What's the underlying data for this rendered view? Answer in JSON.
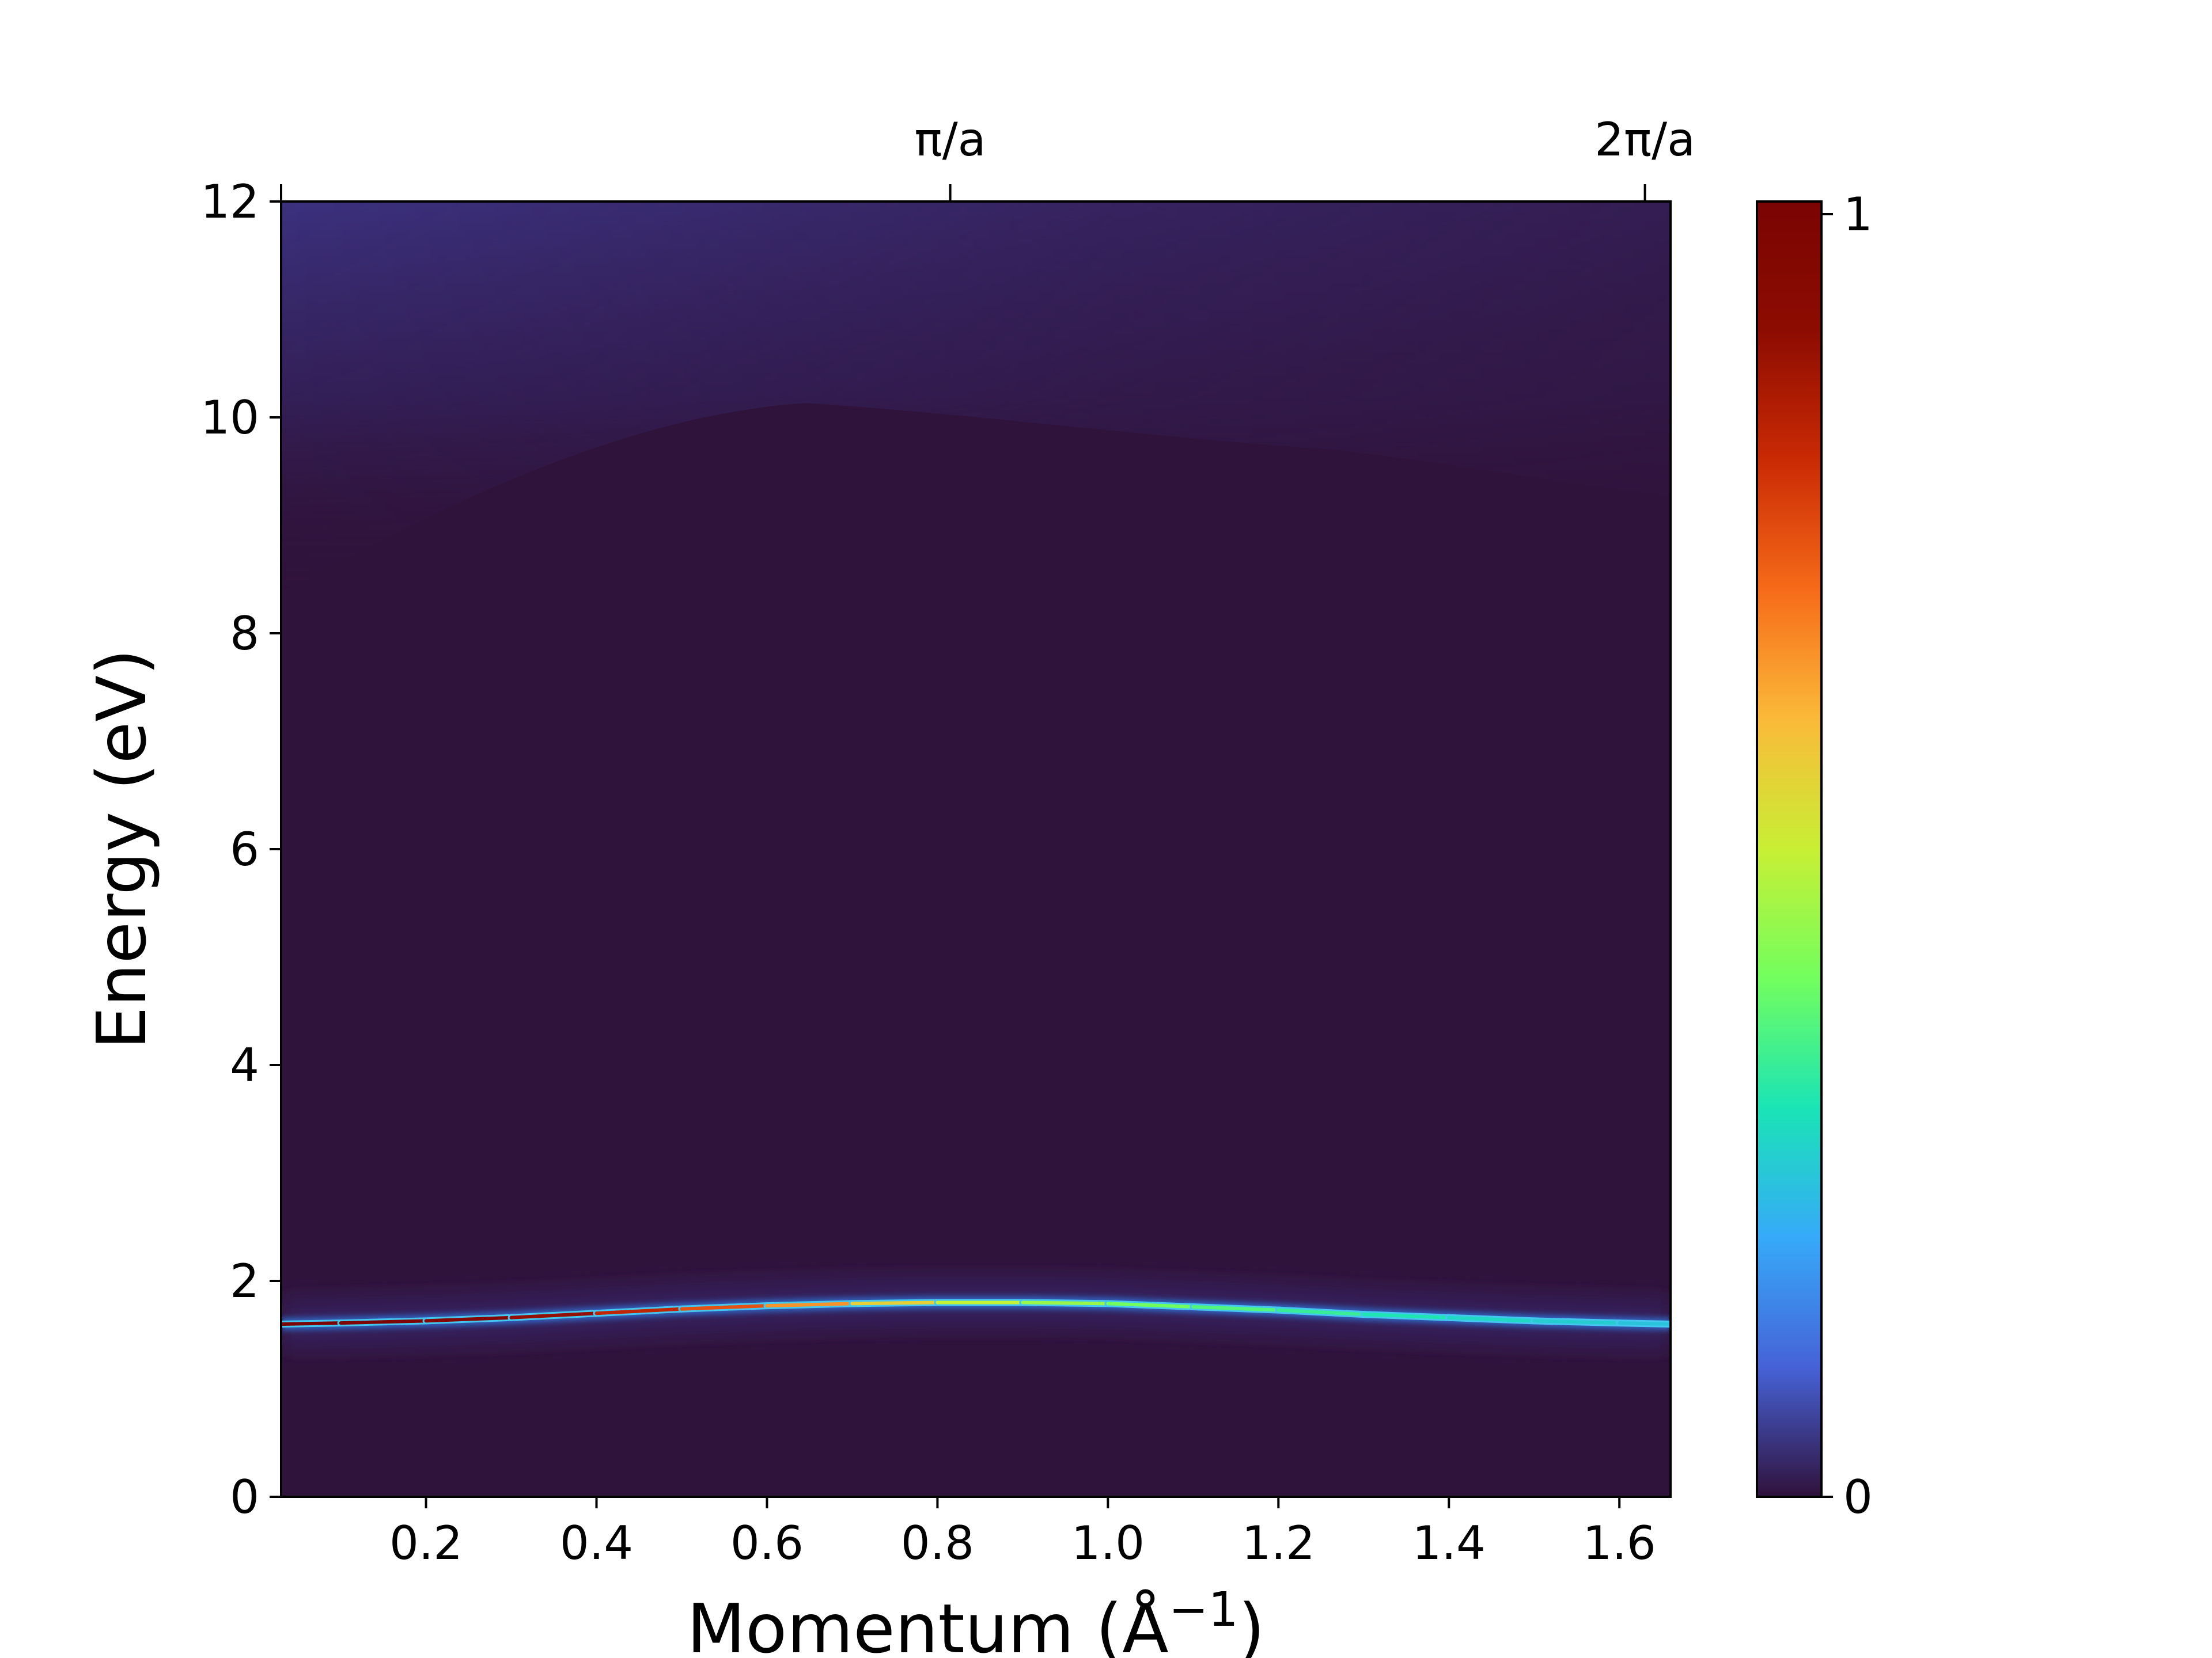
{
  "chart_data": {
    "type": "heatmap",
    "title": "",
    "xlabel": "Momentum (Å",
    "xlabel_sup": "−1",
    "xlabel_close": ")",
    "ylabel": "Energy (eV)",
    "xlim": [
      0.03,
      1.66
    ],
    "ylim": [
      0,
      12
    ],
    "x_ticks": [
      0.2,
      0.4,
      0.6,
      0.8,
      1.0,
      1.2,
      1.4,
      1.6
    ],
    "x_tick_labels": [
      "0.2",
      "0.4",
      "0.6",
      "0.8",
      "1.0",
      "1.2",
      "1.4",
      "1.6"
    ],
    "y_ticks": [
      0,
      2,
      4,
      6,
      8,
      10,
      12
    ],
    "y_tick_labels": [
      "0",
      "2",
      "4",
      "6",
      "8",
      "10",
      "12"
    ],
    "top_ticks": [
      0.815,
      1.63
    ],
    "top_tick_labels": [
      "π/a",
      "2π/a"
    ],
    "colorbar": {
      "range": [
        0,
        1
      ],
      "tick_values": [
        0,
        1
      ],
      "tick_labels": [
        "0",
        "1"
      ],
      "colormap": "turbo"
    },
    "band": {
      "k": [
        0.03,
        0.1,
        0.2,
        0.3,
        0.4,
        0.5,
        0.6,
        0.7,
        0.8,
        0.9,
        1.0,
        1.1,
        1.2,
        1.3,
        1.4,
        1.5,
        1.6,
        1.66
      ],
      "energy": [
        1.6,
        1.61,
        1.63,
        1.66,
        1.7,
        1.74,
        1.77,
        1.79,
        1.8,
        1.8,
        1.79,
        1.76,
        1.73,
        1.69,
        1.66,
        1.63,
        1.61,
        1.6
      ],
      "peak_intensity": [
        1.0,
        1.0,
        0.97,
        0.93,
        0.85,
        0.78,
        0.7,
        0.6,
        0.52,
        0.47,
        0.42,
        0.38,
        0.35,
        0.32,
        0.29,
        0.27,
        0.25,
        0.24
      ]
    },
    "background_color": "#30133b",
    "upper_haze_color": "#3a2f7a"
  }
}
